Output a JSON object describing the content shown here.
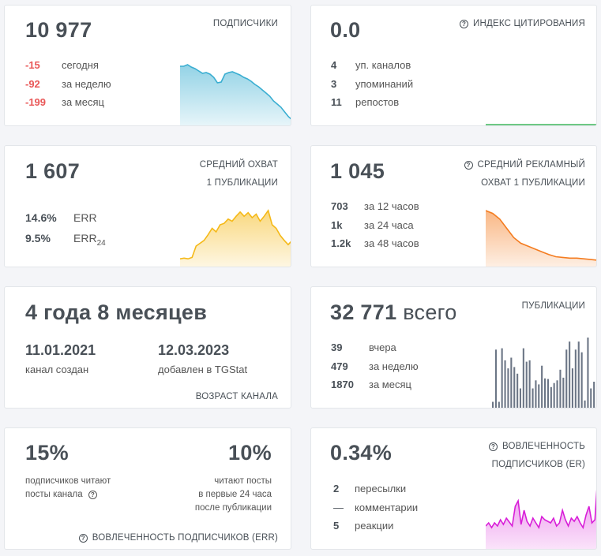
{
  "subscribers": {
    "value": "10 977",
    "title": "подписчики",
    "stats": [
      {
        "value": "-15",
        "label": "сегодня"
      },
      {
        "value": "-92",
        "label": "за неделю"
      },
      {
        "value": "-199",
        "label": "за месяц"
      }
    ],
    "trend": [
      0.76,
      0.76,
      0.78,
      0.75,
      0.73,
      0.7,
      0.67,
      0.68,
      0.66,
      0.62,
      0.55,
      0.56,
      0.66,
      0.68,
      0.69,
      0.67,
      0.65,
      0.62,
      0.6,
      0.57,
      0.53,
      0.5,
      0.46,
      0.42,
      0.38,
      0.32,
      0.28,
      0.24,
      0.18,
      0.12,
      0.08
    ],
    "color": "#3aaed1"
  },
  "citation": {
    "value": "0.0",
    "title": "индекс цитирования",
    "stats": [
      {
        "value": "4",
        "label": "уп. каналов"
      },
      {
        "value": "3",
        "label": "упоминаний"
      },
      {
        "value": "11",
        "label": "репостов"
      }
    ],
    "color": "#3fb55c"
  },
  "avg_reach": {
    "value": "1 607",
    "title_line1": "средний охват",
    "title_line2": "1 публикации",
    "err_value": "14.6%",
    "err_label": "ERR",
    "err24_value": "9.5%",
    "err24_label": "ERR",
    "err24_sub": "24",
    "trend": [
      0.12,
      0.13,
      0.12,
      0.14,
      0.3,
      0.34,
      0.38,
      0.46,
      0.55,
      0.5,
      0.6,
      0.62,
      0.68,
      0.65,
      0.72,
      0.78,
      0.72,
      0.77,
      0.7,
      0.75,
      0.65,
      0.72,
      0.8,
      0.6,
      0.55,
      0.45,
      0.38,
      0.32,
      0.38
    ],
    "color": "#f5b918"
  },
  "ad_reach": {
    "value": "1 045",
    "title_line1": "средний рекламный",
    "title_line2": "охват 1 публикации",
    "stats": [
      {
        "value": "703",
        "label": "за 12 часов"
      },
      {
        "value": "1k",
        "label": "за 24 часа"
      },
      {
        "value": "1.2k",
        "label": "за 48 часов"
      }
    ],
    "trend": [
      0.8,
      0.76,
      0.68,
      0.55,
      0.42,
      0.34,
      0.3,
      0.26,
      0.22,
      0.18,
      0.15,
      0.14,
      0.13,
      0.13,
      0.12,
      0.11,
      0.1
    ],
    "color": "#f47c20"
  },
  "age": {
    "value": "4 года 8 месяцев",
    "created_date": "11.01.2021",
    "created_label": "канал создан",
    "added_date": "12.03.2023",
    "added_label": "добавлен в TGStat",
    "footer": "возраст канала"
  },
  "publications": {
    "value": "32 771",
    "suffix": " всего",
    "title": "публикации",
    "stats": [
      {
        "value": "39",
        "label": "вчера"
      },
      {
        "value": "479",
        "label": "за неделю"
      },
      {
        "value": "1870",
        "label": "за месяц"
      }
    ],
    "bars": [
      0.1,
      0.88,
      0.1,
      0.9,
      0.72,
      0.6,
      0.76,
      0.62,
      0.52,
      0.3,
      0.9,
      0.7,
      0.72,
      0.3,
      0.42,
      0.36,
      0.64,
      0.45,
      0.44,
      0.32,
      0.38,
      0.42,
      0.58,
      0.46,
      0.88,
      1.0,
      0.6,
      0.88,
      1.0,
      0.84,
      0.12,
      1.06,
      0.3,
      0.4
    ],
    "color": "#6c7686"
  },
  "readers": {
    "left_value": "15%",
    "left_line1": "подписчиков читают",
    "left_line2": "посты канала",
    "right_value": "10%",
    "right_line1": "читают посты",
    "right_line2": "в первые 24 часа",
    "right_line3": "после публикации",
    "footer": "вовлеченность подписчиков (ERR)"
  },
  "engagement": {
    "value": "0.34%",
    "title_line1": "вовлеченность",
    "title_line2": "подписчиков (ER)",
    "stats": [
      {
        "value": "2",
        "label": "пересылки"
      },
      {
        "value": "—",
        "label": "комментарии"
      },
      {
        "value": "5",
        "label": "реакции"
      }
    ],
    "trend": [
      0.3,
      0.34,
      0.28,
      0.34,
      0.3,
      0.38,
      0.32,
      0.4,
      0.35,
      0.3,
      0.55,
      0.62,
      0.32,
      0.5,
      0.36,
      0.3,
      0.4,
      0.34,
      0.28,
      0.42,
      0.38,
      0.36,
      0.34,
      0.4,
      0.3,
      0.34,
      0.5,
      0.38,
      0.3,
      0.4,
      0.36,
      0.42,
      0.34,
      0.28,
      0.44,
      0.55,
      0.34,
      0.38,
      0.95
    ],
    "color": "#d81ed8"
  }
}
